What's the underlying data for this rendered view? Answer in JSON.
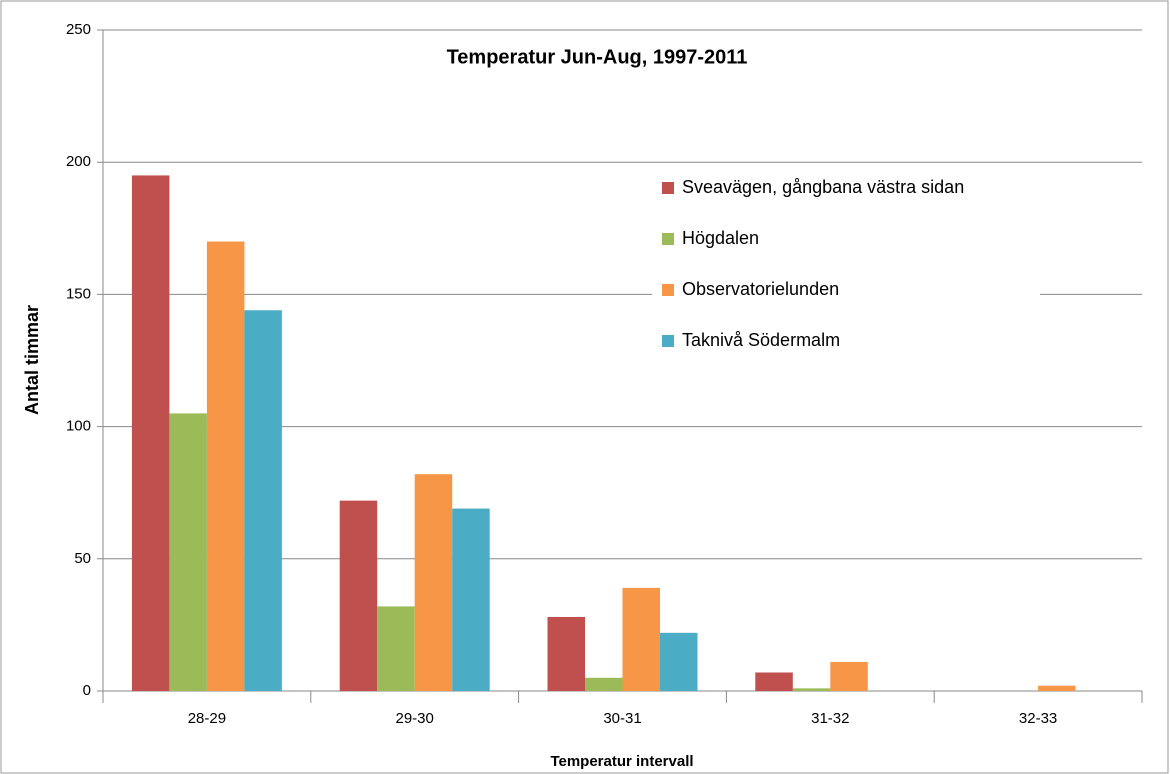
{
  "chart_data": {
    "type": "bar",
    "title": "Temperatur Jun-Aug, 1997-2011",
    "x_label": "Temperatur intervall",
    "y_label": "Antal timmar",
    "categories": [
      "28-29",
      "29-30",
      "30-31",
      "31-32",
      "32-33"
    ],
    "series": [
      {
        "name": "Sveavägen, gångbana västra sidan",
        "color": "#c0504d",
        "values": [
          195,
          72,
          28,
          7,
          0
        ]
      },
      {
        "name": "Högdalen",
        "color": "#9bbb59",
        "values": [
          105,
          32,
          5,
          1,
          0
        ]
      },
      {
        "name": "Observatorielunden",
        "color": "#f79646",
        "values": [
          170,
          82,
          39,
          11,
          2
        ]
      },
      {
        "name": "Taknivå Södermalm",
        "color": "#4bacc6",
        "values": [
          144,
          69,
          22,
          0,
          0
        ]
      }
    ],
    "ylim": [
      0,
      250
    ],
    "yticks": [
      0,
      50,
      100,
      150,
      200,
      250
    ],
    "grid": true,
    "legend": "upper right"
  }
}
